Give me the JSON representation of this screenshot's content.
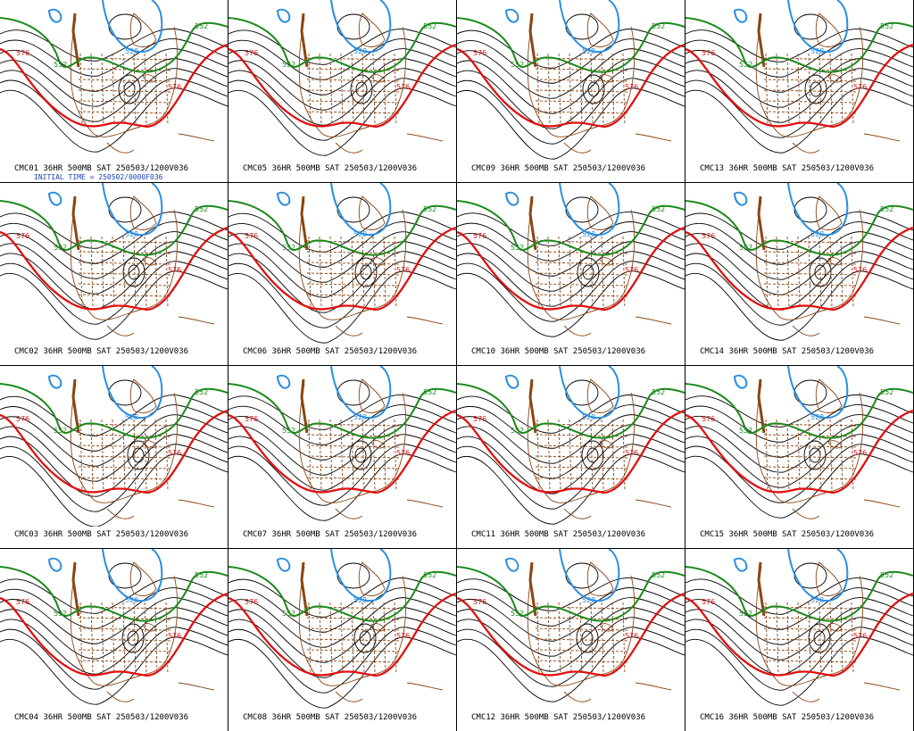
{
  "panels": [
    {
      "member": "CMC01",
      "caption": "CMC01 36HR 500MB SAT 250503/1200V036",
      "subcaption": "INITIAL TIME = 250502/0000F036"
    },
    {
      "member": "CMC05",
      "caption": "CMC05 36HR 500MB SAT 250503/1200V036"
    },
    {
      "member": "CMC09",
      "caption": "CMC09 36HR 500MB SAT 250503/1200V036"
    },
    {
      "member": "CMC13",
      "caption": "CMC13 36HR 500MB SAT 250503/1200V036"
    },
    {
      "member": "CMC02",
      "caption": "CMC02 36HR 500MB SAT 250503/1200V036"
    },
    {
      "member": "CMC06",
      "caption": "CMC06 36HR 500MB SAT 250503/1200V036"
    },
    {
      "member": "CMC10",
      "caption": "CMC10 36HR 500MB SAT 250503/1200V036"
    },
    {
      "member": "CMC14",
      "caption": "CMC14 36HR 500MB SAT 250503/1200V036"
    },
    {
      "member": "CMC03",
      "caption": "CMC03 36HR 500MB SAT 250503/1200V036"
    },
    {
      "member": "CMC07",
      "caption": "CMC07 36HR 500MB SAT 250503/1200V036"
    },
    {
      "member": "CMC11",
      "caption": "CMC11 36HR 500MB SAT 250503/1200V036"
    },
    {
      "member": "CMC15",
      "caption": "CMC15 36HR 500MB SAT 250503/1200V036"
    },
    {
      "member": "CMC04",
      "caption": "CMC04 36HR 500MB SAT 250503/1200V036"
    },
    {
      "member": "CMC08",
      "caption": "CMC08 36HR 500MB SAT 250503/1200V036"
    },
    {
      "member": "CMC12",
      "caption": "CMC12 36HR 500MB SAT 250503/1200V036"
    },
    {
      "member": "CMC16",
      "caption": "CMC16 36HR 500MB SAT 250503/1200V036"
    }
  ],
  "contour_labels": {
    "red": "576",
    "green": "552",
    "blue": "528"
  },
  "colors": {
    "red_contour": "#e01010",
    "green_contour": "#1a8a1a",
    "blue_contour": "#2a8ee0",
    "black_contour": "#000000",
    "map_lines": "#8b4513"
  }
}
